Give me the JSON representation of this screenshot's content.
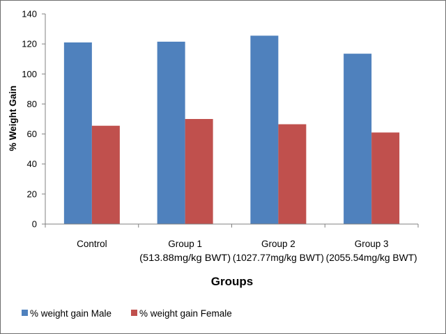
{
  "chart_data": {
    "type": "bar",
    "categories": [
      [
        "Control"
      ],
      [
        "Group 1",
        "(513.88mg/kg BWT)"
      ],
      [
        "Group 2",
        "(1027.77mg/kg BWT)"
      ],
      [
        "Group 3",
        "(2055.54mg/kg BWT)"
      ]
    ],
    "series": [
      {
        "name": "% weight gain Male",
        "color": "#4f81bd",
        "values": [
          121,
          121.5,
          125.5,
          113.5
        ]
      },
      {
        "name": "% weight gain Female",
        "color": "#c0504d",
        "values": [
          65.5,
          70,
          66.5,
          61
        ]
      }
    ],
    "xlabel": "Groups",
    "ylabel": "% Weight Gain",
    "ylim": [
      0,
      140
    ],
    "yticks": [
      0,
      20,
      40,
      60,
      80,
      100,
      120,
      140
    ],
    "grid": false,
    "legend_position": "bottom-left"
  }
}
